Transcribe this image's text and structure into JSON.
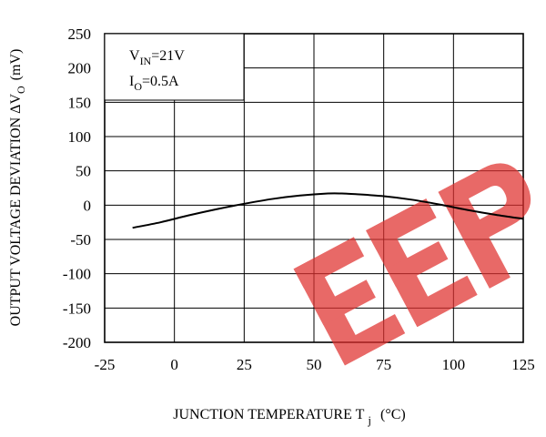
{
  "chart_data": {
    "type": "line",
    "xlabel": "JUNCTION TEMPERATURE T",
    "xlabel_sub": "j",
    "xlabel_unit": "(°C)",
    "ylabel": "OUTPUT VOLTAGE DEVIATION ΔV",
    "ylabel_sub": "O",
    "ylabel_unit": "(mV)",
    "xlim": [
      -25,
      125
    ],
    "ylim": [
      -200,
      250
    ],
    "x_ticks": [
      -25,
      0,
      25,
      50,
      75,
      100,
      125
    ],
    "y_ticks": [
      250,
      200,
      150,
      100,
      50,
      0,
      -50,
      -100,
      -150,
      -200
    ],
    "grid": true,
    "annotations": [
      {
        "main": "V",
        "sub": "IN",
        "rest": "=21V"
      },
      {
        "main": "I",
        "sub": "O",
        "rest": "=0.5A"
      }
    ],
    "series": [
      {
        "x": [
          -15,
          -5,
          5,
          15,
          25,
          35,
          45,
          55,
          60,
          65,
          75,
          85,
          95,
          105,
          115,
          125
        ],
        "y": [
          -33,
          -25,
          -15,
          -6,
          2,
          9,
          14,
          17,
          17,
          16,
          13,
          8,
          1,
          -7,
          -14,
          -20
        ]
      }
    ]
  },
  "watermark": {
    "text": "EEP",
    "color": "#e0302e"
  },
  "colors": {
    "line": "#000000",
    "grid": "#000000"
  }
}
